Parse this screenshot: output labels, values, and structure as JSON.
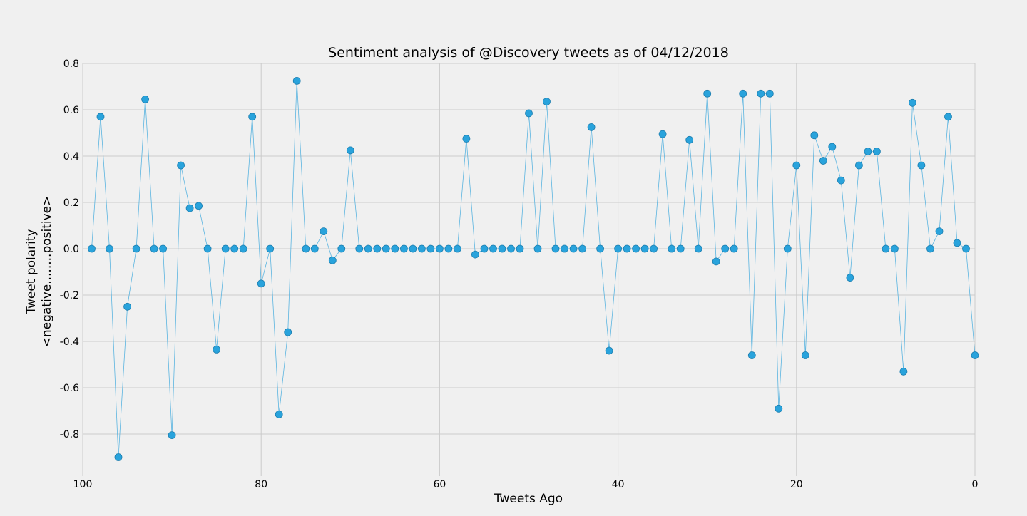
{
  "chart_data": {
    "type": "scatter",
    "title": "Sentiment analysis of @Discovery tweets as of 04/12/2018",
    "xlabel": "Tweets Ago",
    "ylabel_line1": "Tweet polarity",
    "ylabel_line2": "<negative........positive>",
    "xlim": [
      100,
      0
    ],
    "ylim": [
      -0.97,
      0.8
    ],
    "x_ticks": [
      100,
      80,
      60,
      40,
      20,
      0
    ],
    "y_ticks": [
      0.8,
      0.6,
      0.4,
      0.2,
      0.0,
      -0.2,
      -0.4,
      -0.6,
      -0.8
    ],
    "grid": true,
    "colors": {
      "marker": "#29a3dc",
      "marker_edge": "#1d7fb0",
      "line": "#5ab4e0",
      "grid": "#cbcbcb",
      "background": "#f0f0f0"
    },
    "series": [
      {
        "x": [
          99,
          98,
          97,
          96,
          95,
          94,
          93,
          92,
          91,
          90,
          89,
          88,
          87,
          86,
          85,
          84,
          83,
          82,
          81,
          80,
          79,
          78,
          77,
          76,
          75,
          74,
          73,
          72,
          71,
          70,
          69,
          68,
          67,
          66,
          65,
          64,
          63,
          62,
          61,
          60,
          59,
          58,
          57,
          56,
          55,
          54,
          53,
          52,
          51,
          50,
          49,
          48,
          47,
          46,
          45,
          44,
          43,
          42,
          41,
          40,
          39,
          38,
          37,
          36,
          35,
          34,
          33,
          32,
          31,
          30,
          29,
          28,
          27,
          26,
          25,
          24,
          23,
          22,
          21,
          20,
          19,
          18,
          17,
          16,
          15,
          14,
          13,
          12,
          11,
          10,
          9,
          8,
          7,
          6,
          5,
          4,
          3,
          2,
          1,
          0
        ],
        "values": [
          0,
          0.57,
          0,
          -0.9,
          -0.25,
          0,
          0.645,
          0,
          0,
          -0.805,
          0.36,
          0.175,
          0.185,
          0,
          -0.435,
          0,
          0,
          0,
          0.57,
          -0.15,
          0,
          -0.715,
          -0.36,
          0.725,
          0,
          0,
          0.075,
          -0.05,
          0,
          0.425,
          0,
          0,
          0,
          0,
          0,
          0,
          0,
          0,
          0,
          0,
          0,
          0,
          0.475,
          -0.025,
          0,
          0,
          0,
          0,
          0,
          0.585,
          0,
          0.635,
          0,
          0,
          0,
          0,
          0.525,
          0,
          -0.44,
          0,
          0,
          0,
          0,
          0,
          0.495,
          0,
          0,
          0.47,
          0,
          0.67,
          -0.055,
          0,
          0,
          0.67,
          -0.46,
          0.67,
          0.67,
          -0.69,
          0,
          0.36,
          -0.46,
          0.49,
          0.38,
          0.44,
          0.295,
          -0.125,
          0.36,
          0.42,
          0.42,
          0,
          0,
          -0.53,
          0.63,
          0.36,
          0,
          0.075,
          0.57,
          0.025,
          0,
          -0.46
        ]
      }
    ]
  }
}
